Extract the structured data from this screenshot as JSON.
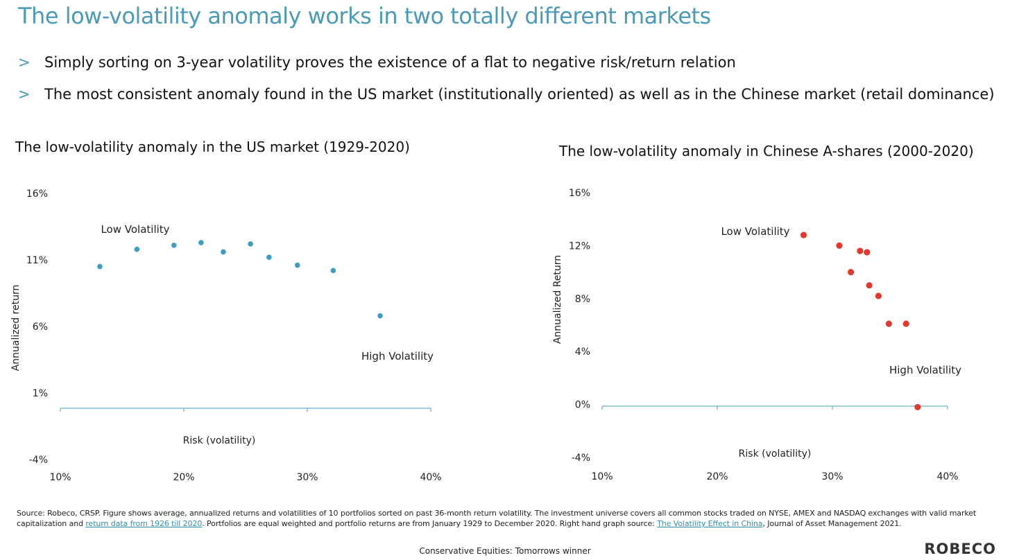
{
  "title": "The low-volatility anomaly works in two totally different markets",
  "bullets": [
    {
      "mark": ">",
      "text": "Simply sorting on 3-year volatility proves the existence of a flat to negative risk/return relation"
    },
    {
      "mark": ">",
      "text": "The most consistent anomaly found in the US market (institutionally oriented) as well as in the Chinese market (retail dominance)"
    }
  ],
  "chart_data": [
    {
      "type": "scatter",
      "title": "The low-volatility anomaly in the US market (1929-2020)",
      "xlabel": "Risk (volatility)",
      "ylabel": "Annualized return",
      "x_ticks": [
        "10%",
        "20%",
        "30%",
        "40%"
      ],
      "y_ticks": [
        "16%",
        "11%",
        "6%",
        "1%",
        "-4%"
      ],
      "xlim": [
        10,
        40
      ],
      "ylim": [
        -4,
        16
      ],
      "annotations": {
        "low": "Low Volatility",
        "high": "High Volatility"
      },
      "color": "#3e9bc1",
      "x": [
        13.2,
        16.2,
        19.2,
        21.4,
        23.2,
        25.4,
        26.9,
        29.2,
        32.1,
        35.9
      ],
      "y": [
        10.5,
        11.8,
        12.1,
        12.3,
        11.6,
        12.2,
        11.2,
        10.6,
        10.2,
        6.8
      ]
    },
    {
      "type": "scatter",
      "title": "The low-volatility anomaly in Chinese A-shares (2000-2020)",
      "xlabel": "Risk (volatility)",
      "ylabel": "Annualized Return",
      "x_ticks": [
        "10%",
        "20%",
        "30%",
        "40%"
      ],
      "y_ticks": [
        "16%",
        "12%",
        "8%",
        "4%",
        "0%",
        "-4%"
      ],
      "xlim": [
        10,
        40
      ],
      "ylim": [
        -4,
        16
      ],
      "annotations": {
        "low": "Low Volatility",
        "high": "High Volatility"
      },
      "color": "#e03a30",
      "x": [
        27.5,
        30.6,
        32.4,
        33.0,
        31.6,
        33.2,
        34.0,
        34.9,
        36.4,
        37.4
      ],
      "y": [
        12.8,
        12.0,
        11.6,
        11.5,
        10.0,
        9.0,
        8.2,
        6.1,
        6.1,
        -0.2
      ]
    }
  ],
  "footnote": {
    "part1": "Source: Robeco, CRSP. Figure shows average, annualized returns and volatilities of 10 portfolios sorted on past 36-month return volatility. The investment universe covers all common stocks traded on NYSE, AMEX and NASDAQ exchanges with valid market capitalization and ",
    "link1": "return data from 1926 till 2020",
    "part2": ". Portfolios are equal weighted and portfolio returns are from January 1929 to December 2020. Right hand graph source: ",
    "link2": "The Volatility Effect in China",
    "part3": ", Journal of Asset Management 2021."
  },
  "footer": "Conservative Equities: Tomorrows winner",
  "logo": "ROBECO"
}
